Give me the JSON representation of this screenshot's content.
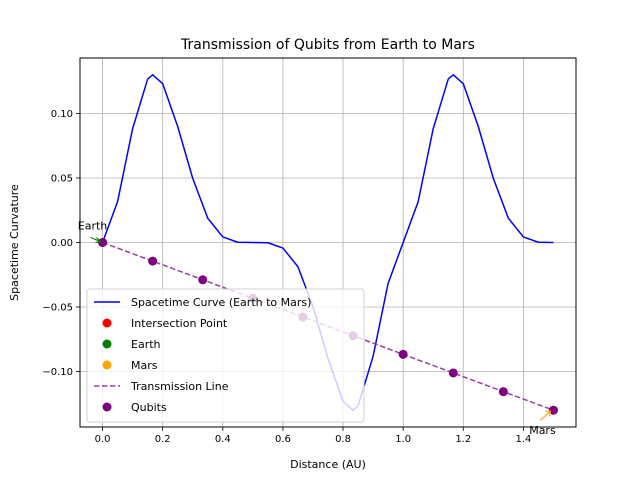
{
  "chart_data": {
    "type": "line",
    "title": "Transmission of Qubits from Earth to Mars",
    "xlabel": "Distance (AU)",
    "ylabel": "Spacetime Curvature",
    "xlim": [
      -0.075,
      1.575
    ],
    "ylim": [
      -0.143,
      0.143
    ],
    "x_ticks": [
      0.0,
      0.2,
      0.4,
      0.6,
      0.8,
      1.0,
      1.2,
      1.4
    ],
    "x_tick_labels": [
      "0.0",
      "0.2",
      "0.4",
      "0.6",
      "0.8",
      "1.0",
      "1.2",
      "1.4"
    ],
    "y_ticks": [
      -0.1,
      -0.05,
      0.0,
      0.05,
      0.1
    ],
    "y_tick_labels": [
      "−0.10",
      "−0.05",
      "0.00",
      "0.05",
      "0.10"
    ],
    "grid": true,
    "legend_position": "lower-left",
    "series": [
      {
        "name": "Spacetime Curve (Earth to Mars)",
        "color": "#0000ff",
        "style": "solid",
        "x": [
          0.0,
          0.05,
          0.1,
          0.15,
          0.1667,
          0.2,
          0.25,
          0.3,
          0.35,
          0.4,
          0.45,
          0.5,
          0.55,
          0.6,
          0.65,
          0.7,
          0.75,
          0.8,
          0.8333,
          0.85,
          0.9,
          0.95,
          1.0,
          1.05,
          1.1,
          1.15,
          1.1667,
          1.2,
          1.25,
          1.3,
          1.35,
          1.4,
          1.45,
          1.5
        ],
        "y": [
          0.0,
          0.0317,
          0.0882,
          0.1267,
          0.13,
          0.1231,
          0.0899,
          0.0497,
          0.0188,
          0.0043,
          0.0002,
          0.0,
          -0.0002,
          -0.0043,
          -0.0188,
          -0.0497,
          -0.0899,
          -0.1231,
          -0.13,
          -0.1267,
          -0.0882,
          -0.0317,
          0.0,
          0.0317,
          0.0882,
          0.1267,
          0.13,
          0.1231,
          0.0899,
          0.0497,
          0.0188,
          0.0043,
          0.0002,
          0.0
        ]
      },
      {
        "name": "Transmission Line",
        "color": "#9c3fa3",
        "style": "dashed",
        "x": [
          0.0,
          1.5
        ],
        "y": [
          0.0,
          -0.13
        ]
      }
    ],
    "points": [
      {
        "name": "Intersection Point",
        "color": "#ff0000",
        "x": [],
        "y": []
      },
      {
        "name": "Earth",
        "color": "#008000",
        "x": [
          0.0
        ],
        "y": [
          0.0
        ]
      },
      {
        "name": "Mars",
        "color": "#ffa500",
        "x": [
          1.5
        ],
        "y": [
          -0.13
        ]
      },
      {
        "name": "Qubits",
        "color": "#800080",
        "x": [
          0.0,
          0.1667,
          0.3333,
          0.5,
          0.6667,
          0.8333,
          1.0,
          1.1667,
          1.3333,
          1.5
        ],
        "y": [
          0.0,
          -0.0144,
          -0.0289,
          -0.0433,
          -0.0578,
          -0.0722,
          -0.0867,
          -0.1011,
          -0.1156,
          -0.13
        ]
      }
    ],
    "annotations": [
      {
        "text": "Earth",
        "x": 0.0,
        "y": 0.0,
        "color": "#008000"
      },
      {
        "text": "Mars",
        "x": 1.5,
        "y": -0.13,
        "color": "#ffa500"
      }
    ]
  }
}
